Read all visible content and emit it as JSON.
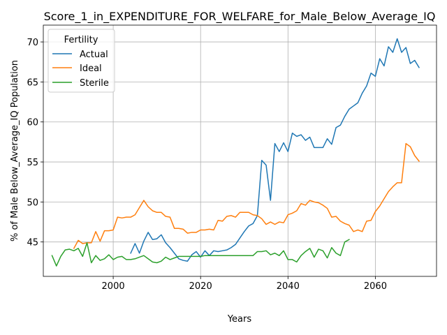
{
  "chart_data": {
    "type": "line",
    "title": "Score_1_in_EXPENDITURE_FOR_WELFARE_for_Male_Below_Average_IQ",
    "xlabel": "Years",
    "ylabel": "% of Male Below_Average_IQ Population",
    "xlim": [
      1984,
      2074
    ],
    "ylim": [
      40.7,
      72.1
    ],
    "x_ticks": [
      2000,
      2020,
      2040,
      2060
    ],
    "y_ticks": [
      45,
      50,
      55,
      60,
      65,
      70
    ],
    "grid": true,
    "legend": {
      "title": "Fertility",
      "placement": "top-left"
    },
    "series": [
      {
        "name": "Actual",
        "color": "#1f77b4",
        "x": [
          2004,
          2005,
          2006,
          2007,
          2008,
          2009,
          2010,
          2011,
          2012,
          2013,
          2014,
          2015,
          2016,
          2017,
          2018,
          2019,
          2020,
          2021,
          2022,
          2023,
          2024,
          2025,
          2026,
          2027,
          2028,
          2029,
          2030,
          2031,
          2032,
          2033,
          2034,
          2035,
          2036,
          2037,
          2038,
          2039,
          2040,
          2041,
          2042,
          2043,
          2044,
          2045,
          2046,
          2047,
          2048,
          2049,
          2050,
          2051,
          2052,
          2053,
          2054,
          2055,
          2056,
          2057,
          2058,
          2059,
          2060,
          2061,
          2062,
          2063,
          2064,
          2065,
          2066,
          2067,
          2068,
          2069,
          2070
        ],
        "values": [
          43.6,
          44.8,
          43.6,
          45.1,
          46.2,
          45.3,
          45.4,
          45.9,
          44.9,
          44.3,
          43.6,
          42.9,
          42.7,
          42.6,
          43.4,
          43.8,
          43.1,
          43.9,
          43.3,
          43.9,
          43.8,
          43.9,
          44.0,
          44.3,
          44.7,
          45.5,
          46.3,
          47.0,
          47.3,
          48.3,
          55.2,
          54.6,
          50.2,
          57.3,
          56.3,
          57.4,
          56.3,
          58.6,
          58.2,
          58.4,
          57.7,
          58.1,
          56.8,
          56.8,
          56.8,
          57.9,
          57.2,
          59.3,
          59.6,
          60.7,
          61.6,
          62.0,
          62.4,
          63.6,
          64.5,
          66.1,
          65.7,
          67.9,
          67.0,
          69.4,
          68.7,
          70.4,
          68.7,
          69.3,
          67.3,
          67.7,
          66.8
        ]
      },
      {
        "name": "Ideal",
        "color": "#ff7f0e",
        "x": [
          1991,
          1992,
          1993,
          1994,
          1995,
          1996,
          1997,
          1998,
          1999,
          2000,
          2001,
          2002,
          2003,
          2004,
          2005,
          2006,
          2007,
          2008,
          2009,
          2010,
          2011,
          2012,
          2013,
          2014,
          2015,
          2016,
          2017,
          2018,
          2019,
          2020,
          2021,
          2022,
          2023,
          2024,
          2025,
          2026,
          2027,
          2028,
          2029,
          2030,
          2031,
          2032,
          2033,
          2034,
          2035,
          2036,
          2037,
          2038,
          2039,
          2040,
          2041,
          2042,
          2043,
          2044,
          2045,
          2046,
          2047,
          2048,
          2049,
          2050,
          2051,
          2052,
          2053,
          2054,
          2055,
          2056,
          2057,
          2058,
          2059,
          2060,
          2061,
          2062,
          2063,
          2064,
          2065,
          2066,
          2067,
          2068,
          2069,
          2070
        ],
        "values": [
          44.2,
          45.2,
          44.8,
          44.9,
          44.9,
          46.3,
          45.1,
          46.4,
          46.4,
          46.5,
          48.1,
          48.0,
          48.1,
          48.1,
          48.4,
          49.3,
          50.2,
          49.4,
          48.9,
          48.7,
          48.7,
          48.2,
          48.1,
          46.7,
          46.7,
          46.6,
          46.1,
          46.2,
          46.2,
          46.5,
          46.5,
          46.6,
          46.5,
          47.7,
          47.6,
          48.2,
          48.3,
          48.1,
          48.7,
          48.7,
          48.7,
          48.4,
          48.3,
          47.9,
          47.2,
          47.5,
          47.2,
          47.5,
          47.4,
          48.4,
          48.6,
          48.9,
          49.8,
          49.6,
          50.2,
          50.0,
          49.9,
          49.6,
          49.2,
          48.1,
          48.2,
          47.6,
          47.3,
          47.1,
          46.3,
          46.5,
          46.3,
          47.6,
          47.7,
          48.8,
          49.5,
          50.4,
          51.3,
          51.9,
          52.4,
          52.4,
          57.3,
          56.9,
          55.8,
          55.1
        ]
      },
      {
        "name": "Sterile",
        "color": "#2ca02c",
        "x": [
          1986,
          1987,
          1988,
          1989,
          1990,
          1991,
          1992,
          1993,
          1994,
          1995,
          1996,
          1997,
          1998,
          1999,
          2000,
          2001,
          2002,
          2003,
          2004,
          2005,
          2006,
          2007,
          2008,
          2009,
          2010,
          2011,
          2012,
          2013,
          2014,
          2015,
          2016,
          2017,
          2018,
          2019,
          2020,
          2021,
          2022,
          2023,
          2024,
          2025,
          2026,
          2027,
          2028,
          2029,
          2030,
          2031,
          2032,
          2033,
          2034,
          2035,
          2036,
          2037,
          2038,
          2039,
          2040,
          2041,
          2042,
          2043,
          2044,
          2045,
          2046,
          2047,
          2048,
          2049,
          2050,
          2051,
          2052,
          2053,
          2054
        ],
        "values": [
          43.3,
          42.0,
          43.2,
          44.0,
          44.1,
          43.9,
          44.2,
          43.2,
          44.9,
          42.4,
          43.3,
          42.7,
          42.9,
          43.4,
          42.8,
          43.1,
          43.2,
          42.8,
          42.8,
          42.9,
          43.1,
          43.3,
          42.9,
          42.5,
          42.4,
          42.6,
          43.1,
          42.8,
          43.0,
          43.2,
          43.2,
          43.2,
          43.2,
          43.2,
          43.2,
          43.3,
          43.3,
          43.3,
          43.3,
          43.3,
          43.3,
          43.3,
          43.3,
          43.3,
          43.3,
          43.3,
          43.3,
          43.8,
          43.8,
          43.9,
          43.4,
          43.6,
          43.3,
          43.9,
          42.8,
          42.8,
          42.5,
          43.3,
          43.8,
          44.2,
          43.1,
          44.1,
          43.9,
          43.0,
          44.3,
          43.6,
          43.3,
          45.0,
          45.3
        ]
      }
    ]
  }
}
